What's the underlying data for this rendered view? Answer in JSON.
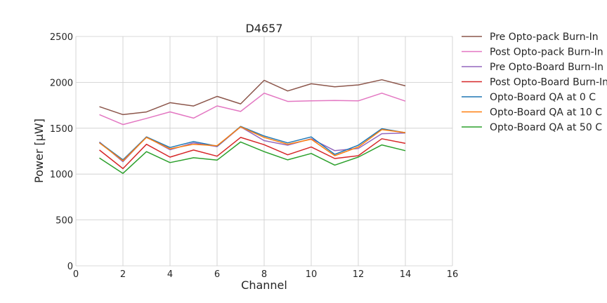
{
  "chart_data": {
    "type": "line",
    "title": "D4657",
    "xlabel": "Channel",
    "ylabel": "Power [μW]",
    "xlim": [
      0,
      16
    ],
    "ylim": [
      0,
      2500
    ],
    "xticks": [
      0,
      2,
      4,
      6,
      8,
      10,
      12,
      14,
      16
    ],
    "yticks": [
      0,
      500,
      1000,
      1500,
      2000,
      2500
    ],
    "grid": true,
    "legend_position": "outside-right",
    "x": [
      1,
      2,
      3,
      4,
      5,
      6,
      7,
      8,
      9,
      10,
      11,
      12,
      13,
      14
    ],
    "series": [
      {
        "name": "Pre Opto-pack Burn-In",
        "color": "#8c564b",
        "values": [
          1735,
          1648,
          1677,
          1778,
          1742,
          1847,
          1765,
          2022,
          1906,
          1985,
          1951,
          1972,
          2028,
          1962
        ]
      },
      {
        "name": "Post Opto-pack Burn-In",
        "color": "#e377c2",
        "values": [
          1648,
          1540,
          1607,
          1678,
          1610,
          1743,
          1683,
          1882,
          1792,
          1798,
          1802,
          1798,
          1882,
          1795
        ]
      },
      {
        "name": "Pre Opto-Board Burn-In",
        "color": "#9467bd",
        "values": [
          1350,
          1135,
          1405,
          1265,
          1340,
          1300,
          1515,
          1365,
          1315,
          1385,
          1255,
          1280,
          1440,
          1448
        ]
      },
      {
        "name": "Post Opto-Board Burn-In",
        "color": "#d62728",
        "values": [
          1262,
          1060,
          1325,
          1185,
          1262,
          1195,
          1400,
          1320,
          1210,
          1295,
          1170,
          1200,
          1385,
          1335
        ]
      },
      {
        "name": "Opto-Board QA at 0 C",
        "color": "#1f77b4",
        "values": [
          1345,
          1155,
          1405,
          1290,
          1355,
          1305,
          1520,
          1415,
          1340,
          1405,
          1215,
          1315,
          1495,
          1450
        ]
      },
      {
        "name": "Opto-Board QA at 10 C",
        "color": "#ff7f0e",
        "values": [
          1340,
          1145,
          1400,
          1275,
          1325,
          1310,
          1515,
          1400,
          1325,
          1380,
          1200,
          1295,
          1485,
          1452
        ]
      },
      {
        "name": "Opto-Board QA at 50 C",
        "color": "#2ca02c",
        "values": [
          1175,
          1008,
          1245,
          1125,
          1178,
          1152,
          1350,
          1245,
          1155,
          1225,
          1098,
          1185,
          1318,
          1255
        ]
      }
    ]
  }
}
